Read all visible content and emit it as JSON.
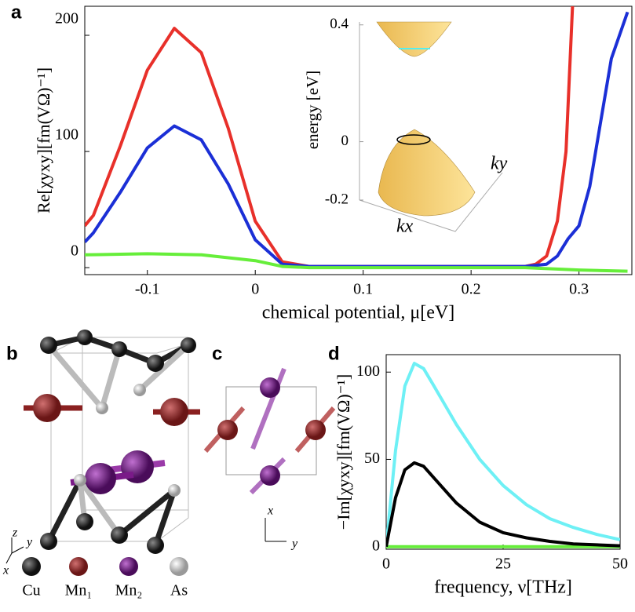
{
  "chart_data": [
    {
      "type": "line",
      "label": "a",
      "xlabel": "chemical potential, μ[eV]",
      "ylabel": "Re[χyxy][fm(VΩ)⁻¹]",
      "xlim": [
        -0.158,
        0.349
      ],
      "ylim": [
        -6,
        225
      ],
      "xticks": [
        -0.1,
        0,
        0.1,
        0.2,
        0.3
      ],
      "yticks": [
        0,
        100,
        200
      ],
      "series": [
        {
          "color": "#e8302a",
          "x": [
            -0.158,
            -0.15,
            -0.125,
            -0.1,
            -0.075,
            -0.05,
            -0.025,
            0,
            0.025,
            0.05,
            0.1,
            0.15,
            0.2,
            0.25,
            0.26,
            0.27,
            0.28,
            0.288,
            0.294
          ],
          "values": [
            36,
            45,
            105,
            170,
            206,
            185,
            120,
            40,
            5,
            1,
            1,
            1,
            1,
            1,
            3,
            10,
            40,
            100,
            225
          ]
        },
        {
          "color": "#1b2fd6",
          "x": [
            -0.158,
            -0.15,
            -0.125,
            -0.1,
            -0.075,
            -0.05,
            -0.025,
            0,
            0.025,
            0.05,
            0.1,
            0.15,
            0.2,
            0.25,
            0.27,
            0.28,
            0.29,
            0.3,
            0.31,
            0.32,
            0.33,
            0.345
          ],
          "values": [
            22,
            30,
            65,
            103,
            122,
            110,
            72,
            24,
            3,
            1,
            1,
            1,
            1,
            1,
            3,
            10,
            25,
            36,
            70,
            125,
            180,
            220
          ]
        },
        {
          "color": "#66ee3a",
          "x": [
            -0.158,
            -0.1,
            -0.05,
            0,
            0.025,
            0.05,
            0.1,
            0.15,
            0.2,
            0.25,
            0.3,
            0.345
          ],
          "values": [
            11,
            12,
            11,
            6,
            1,
            0,
            0,
            0,
            0,
            0,
            -2,
            -3
          ]
        }
      ],
      "inset": {
        "ylabel": "energy [eV]",
        "ylim": [
          -0.2,
          0.41
        ],
        "yticks": [
          0.4,
          0,
          -0.2
        ],
        "xlabel": "kx",
        "zlabel": "ky"
      }
    },
    {
      "type": "line",
      "label": "d",
      "xlabel": "frequency, ν[THz]",
      "ylabel": "−Im[χyxy][fm(VΩ)⁻¹]",
      "xlim": [
        0,
        50
      ],
      "ylim": [
        -1.5,
        110
      ],
      "xticks": [
        0,
        25,
        50
      ],
      "yticks": [
        0,
        50,
        100
      ],
      "series": [
        {
          "color": "#66ee3a",
          "x": [
            0,
            10,
            20,
            30,
            40,
            50
          ],
          "values": [
            0,
            0,
            0,
            0,
            0,
            0
          ]
        },
        {
          "color": "#6ef0f5",
          "x": [
            0,
            2,
            4,
            6,
            8,
            10,
            15,
            20,
            25,
            30,
            35,
            40,
            45,
            50
          ],
          "values": [
            0,
            55,
            92,
            105,
            102,
            93,
            70,
            50,
            35,
            24,
            16,
            11,
            7,
            4
          ]
        },
        {
          "color": "#000000",
          "x": [
            0,
            2,
            4,
            6,
            8,
            10,
            15,
            20,
            25,
            30,
            35,
            40,
            45,
            50
          ],
          "values": [
            0,
            28,
            44,
            48,
            46,
            40,
            25,
            14,
            8,
            5,
            3,
            1.5,
            1,
            0.5
          ]
        }
      ]
    }
  ],
  "structure": {
    "b_label": "b",
    "c_label": "c",
    "b_axes": [
      "z",
      "y",
      "x"
    ],
    "c_axes": [
      "x",
      "y"
    ],
    "legend": [
      "Cu",
      "Mn₁",
      "Mn₂",
      "As"
    ]
  }
}
